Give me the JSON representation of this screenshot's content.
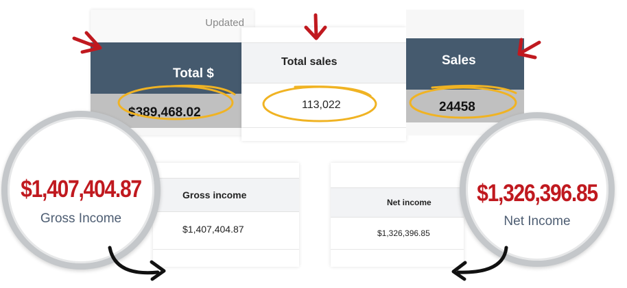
{
  "total_panel": {
    "updated_text": "Updated",
    "header": "Total $",
    "value": "$389,468.02"
  },
  "total_sales_panel": {
    "header": "Total sales",
    "value": "113,022"
  },
  "sales_panel": {
    "header": "Sales",
    "value": "24458"
  },
  "gross_panel": {
    "header": "Gross income",
    "value": "$1,407,404.87"
  },
  "net_panel": {
    "header": "Net income",
    "value": "$1,326,396.85"
  },
  "gross_circle": {
    "amount": "$1,407,404.87",
    "label": "Gross Income"
  },
  "net_circle": {
    "amount": "$1,326,396.85",
    "label": "Net Income"
  },
  "colors": {
    "header_dark": "#455a6e",
    "value_gray": "#c0c0c0",
    "highlight": "#f0b323",
    "arrow_red": "#c0191f",
    "big_number_red": "#c0191f"
  },
  "icons": [
    "red-arrow-icon",
    "curved-arrow-icon"
  ]
}
